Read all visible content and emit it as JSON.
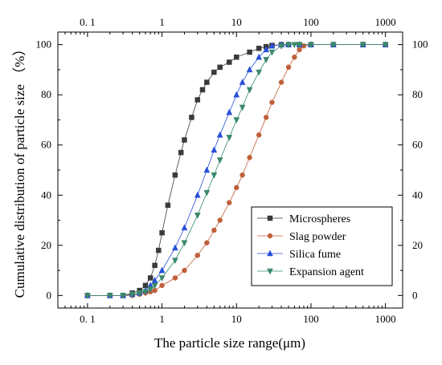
{
  "chart_data": {
    "type": "scatter",
    "title": "",
    "xlabel": "The particle size  range(μm)",
    "ylabel": "Cumulative distribution of particle size （%）",
    "xscale": "log",
    "xlim": [
      0.04,
      1700
    ],
    "ylim": [
      -5,
      105
    ],
    "x_ticks": [
      0.1,
      1,
      10,
      100,
      1000
    ],
    "x_tick_labels": [
      "0. 1",
      "1",
      "10",
      "100",
      "1000"
    ],
    "y_ticks": [
      0,
      20,
      40,
      60,
      80,
      100
    ],
    "y_tick_labels": [
      "0",
      "20",
      "40",
      "60",
      "80",
      "100"
    ],
    "top_axis_labels": true,
    "right_axis_labels": true,
    "grid": false,
    "legend_position": "bottom-right",
    "series": [
      {
        "name": "Microspheres",
        "marker": "square",
        "color": "#3a3a3a",
        "x": [
          0.1,
          0.2,
          0.3,
          0.4,
          0.5,
          0.6,
          0.7,
          0.8,
          0.9,
          1.0,
          1.2,
          1.5,
          1.8,
          2.0,
          2.5,
          3.0,
          3.5,
          4.0,
          5.0,
          6.0,
          8.0,
          10,
          15,
          20,
          25,
          30,
          40,
          50,
          70,
          100,
          200,
          500,
          1000
        ],
        "y": [
          0,
          0,
          0,
          1,
          2,
          4,
          7,
          12,
          18,
          25,
          36,
          48,
          57,
          62,
          71,
          78,
          82,
          85,
          89,
          91,
          93,
          95,
          97,
          98.5,
          99.2,
          99.7,
          100,
          100,
          100,
          100,
          100,
          100,
          100
        ]
      },
      {
        "name": "Slag powder",
        "marker": "circle",
        "color": "#c0603a",
        "x": [
          0.1,
          0.2,
          0.3,
          0.4,
          0.5,
          0.6,
          0.7,
          0.8,
          1.0,
          1.5,
          2.0,
          3.0,
          4.0,
          5.0,
          6.0,
          8.0,
          10,
          12,
          15,
          20,
          25,
          30,
          40,
          50,
          60,
          70,
          80,
          100,
          200,
          500,
          1000
        ],
        "y": [
          0,
          0,
          0,
          0,
          0.5,
          1,
          1.5,
          2,
          4,
          7,
          10,
          16,
          21,
          26,
          30,
          37,
          43,
          48,
          55,
          64,
          71,
          77,
          85,
          91,
          95,
          98,
          99.5,
          100,
          100,
          100,
          100
        ]
      },
      {
        "name": "Silica fume",
        "marker": "triangle-up",
        "color": "#2850d8",
        "x": [
          0.1,
          0.2,
          0.3,
          0.4,
          0.5,
          0.6,
          0.7,
          0.8,
          1.0,
          1.5,
          2.0,
          3.0,
          4.0,
          5.0,
          6.0,
          8.0,
          10,
          12,
          15,
          20,
          25,
          30,
          40,
          50,
          70,
          100,
          200,
          500,
          1000
        ],
        "y": [
          0,
          0,
          0,
          0.5,
          1,
          2,
          4,
          6,
          10,
          19,
          27,
          40,
          50,
          58,
          64,
          73,
          80,
          85,
          90,
          95,
          98,
          99.5,
          100,
          100,
          100,
          100,
          100,
          100,
          100
        ]
      },
      {
        "name": "Expansion agent",
        "marker": "triangle-down",
        "color": "#3a8a6a",
        "x": [
          0.1,
          0.2,
          0.3,
          0.4,
          0.5,
          0.6,
          0.7,
          0.8,
          1.0,
          1.5,
          2.0,
          3.0,
          4.0,
          5.0,
          6.0,
          8.0,
          10,
          12,
          15,
          20,
          25,
          30,
          40,
          50,
          60,
          70,
          100,
          200,
          500,
          1000
        ],
        "y": [
          0,
          0,
          0,
          0.5,
          1,
          1.5,
          2.5,
          4,
          7,
          14,
          21,
          32,
          41,
          48,
          54,
          63,
          70,
          75,
          82,
          89,
          94,
          97,
          99.5,
          100,
          100,
          100,
          100,
          100,
          100,
          100
        ]
      }
    ]
  }
}
